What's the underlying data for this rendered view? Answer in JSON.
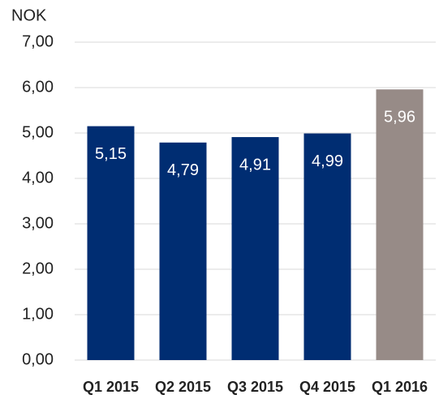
{
  "chart_data": {
    "type": "bar",
    "y_axis_label": "NOK",
    "categories": [
      "Q1 2015",
      "Q2 2015",
      "Q3 2015",
      "Q4 2015",
      "Q1 2016"
    ],
    "values": [
      5.15,
      4.79,
      4.91,
      4.99,
      5.96
    ],
    "value_labels": [
      "5,15",
      "4,79",
      "4,91",
      "4,99",
      "5,96"
    ],
    "colors": [
      "#002d72",
      "#002d72",
      "#002d72",
      "#002d72",
      "#978b87"
    ],
    "ylim": [
      0,
      7
    ],
    "yticks": [
      {
        "value": 0,
        "label": "0,00"
      },
      {
        "value": 1,
        "label": "1,00"
      },
      {
        "value": 2,
        "label": "2,00"
      },
      {
        "value": 3,
        "label": "3,00"
      },
      {
        "value": 4,
        "label": "4,00"
      },
      {
        "value": 5,
        "label": "5,00"
      },
      {
        "value": 6,
        "label": "6,00"
      },
      {
        "value": 7,
        "label": "7,00"
      }
    ],
    "grid": true
  }
}
